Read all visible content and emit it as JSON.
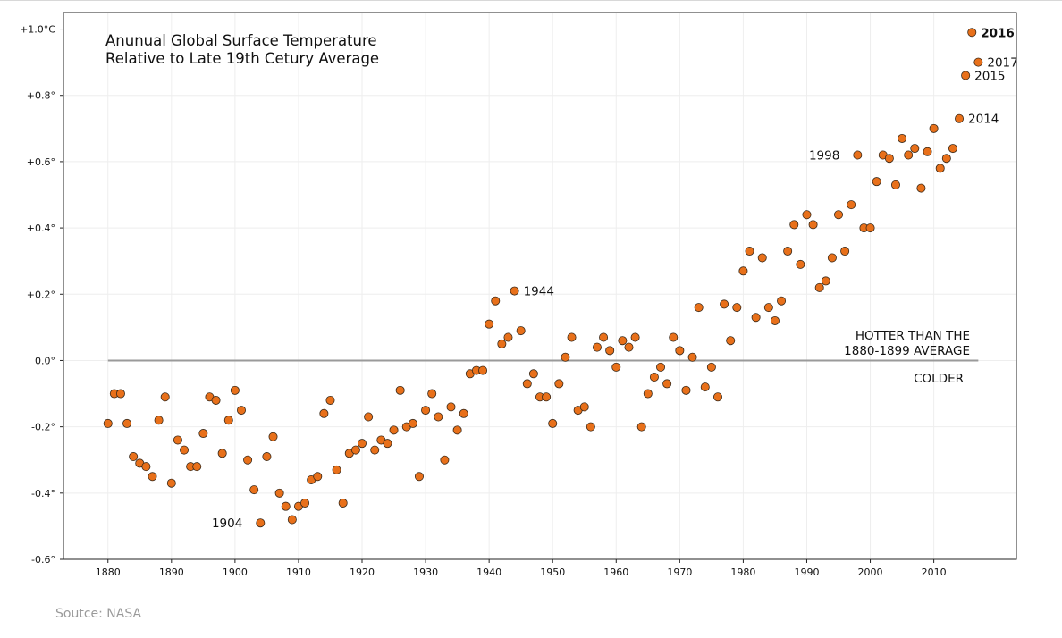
{
  "chart_data": {
    "type": "scatter",
    "title_lines": [
      "Anunual Global Surface Temperature",
      "Relative to Late 19th Cetury Average"
    ],
    "xlabel": "",
    "ylabel": "",
    "xlim": [
      1873,
      2023
    ],
    "ylim": [
      -0.6,
      1.05
    ],
    "xticks": [
      1880,
      1890,
      1900,
      1910,
      1920,
      1930,
      1940,
      1950,
      1960,
      1970,
      1980,
      1990,
      2000,
      2010
    ],
    "yticks": [
      {
        "value": 1.0,
        "label": "+1.0°C"
      },
      {
        "value": 0.8,
        "label": "+0.8°"
      },
      {
        "value": 0.6,
        "label": "+0.6°"
      },
      {
        "value": 0.4,
        "label": "+0.4°"
      },
      {
        "value": 0.2,
        "label": "+0.2°"
      },
      {
        "value": 0.0,
        "label": "0.0°"
      },
      {
        "value": -0.2,
        "label": "-0.2°"
      },
      {
        "value": -0.4,
        "label": "-0.4°"
      },
      {
        "value": -0.6,
        "label": "-0.6°"
      }
    ],
    "grid": true,
    "marker_color": "#e8701a",
    "marker_edge": "#3a2a1a",
    "baseline": {
      "y": 0.0,
      "x_start": 1880,
      "x_end": 2017,
      "color": "#9a9a9a"
    },
    "baseline_labels": {
      "hotter": [
        "HOTTER THAN THE",
        "1880-1899 AVERAGE"
      ],
      "colder": "COLDER"
    },
    "points": [
      {
        "x": 1880,
        "y": -0.19
      },
      {
        "x": 1881,
        "y": -0.1
      },
      {
        "x": 1882,
        "y": -0.1
      },
      {
        "x": 1883,
        "y": -0.19
      },
      {
        "x": 1884,
        "y": -0.29
      },
      {
        "x": 1885,
        "y": -0.31
      },
      {
        "x": 1886,
        "y": -0.32
      },
      {
        "x": 1887,
        "y": -0.35
      },
      {
        "x": 1888,
        "y": -0.18
      },
      {
        "x": 1889,
        "y": -0.11
      },
      {
        "x": 1890,
        "y": -0.37
      },
      {
        "x": 1891,
        "y": -0.24
      },
      {
        "x": 1892,
        "y": -0.27
      },
      {
        "x": 1893,
        "y": -0.32
      },
      {
        "x": 1894,
        "y": -0.32
      },
      {
        "x": 1895,
        "y": -0.22
      },
      {
        "x": 1896,
        "y": -0.11
      },
      {
        "x": 1897,
        "y": -0.12
      },
      {
        "x": 1898,
        "y": -0.28
      },
      {
        "x": 1899,
        "y": -0.18
      },
      {
        "x": 1900,
        "y": -0.09
      },
      {
        "x": 1901,
        "y": -0.15
      },
      {
        "x": 1902,
        "y": -0.3
      },
      {
        "x": 1903,
        "y": -0.39
      },
      {
        "x": 1904,
        "y": -0.49
      },
      {
        "x": 1905,
        "y": -0.29
      },
      {
        "x": 1906,
        "y": -0.23
      },
      {
        "x": 1907,
        "y": -0.4
      },
      {
        "x": 1908,
        "y": -0.44
      },
      {
        "x": 1909,
        "y": -0.48
      },
      {
        "x": 1910,
        "y": -0.44
      },
      {
        "x": 1911,
        "y": -0.43
      },
      {
        "x": 1912,
        "y": -0.36
      },
      {
        "x": 1913,
        "y": -0.35
      },
      {
        "x": 1914,
        "y": -0.16
      },
      {
        "x": 1915,
        "y": -0.12
      },
      {
        "x": 1916,
        "y": -0.33
      },
      {
        "x": 1917,
        "y": -0.43
      },
      {
        "x": 1918,
        "y": -0.28
      },
      {
        "x": 1919,
        "y": -0.27
      },
      {
        "x": 1920,
        "y": -0.25
      },
      {
        "x": 1921,
        "y": -0.17
      },
      {
        "x": 1922,
        "y": -0.27
      },
      {
        "x": 1923,
        "y": -0.24
      },
      {
        "x": 1924,
        "y": -0.25
      },
      {
        "x": 1925,
        "y": -0.21
      },
      {
        "x": 1926,
        "y": -0.09
      },
      {
        "x": 1927,
        "y": -0.2
      },
      {
        "x": 1928,
        "y": -0.19
      },
      {
        "x": 1929,
        "y": -0.35
      },
      {
        "x": 1930,
        "y": -0.15
      },
      {
        "x": 1931,
        "y": -0.1
      },
      {
        "x": 1932,
        "y": -0.17
      },
      {
        "x": 1933,
        "y": -0.3
      },
      {
        "x": 1934,
        "y": -0.14
      },
      {
        "x": 1935,
        "y": -0.21
      },
      {
        "x": 1936,
        "y": -0.16
      },
      {
        "x": 1937,
        "y": -0.04
      },
      {
        "x": 1938,
        "y": -0.03
      },
      {
        "x": 1939,
        "y": -0.03
      },
      {
        "x": 1940,
        "y": 0.11
      },
      {
        "x": 1941,
        "y": 0.18
      },
      {
        "x": 1942,
        "y": 0.05
      },
      {
        "x": 1943,
        "y": 0.07
      },
      {
        "x": 1944,
        "y": 0.21
      },
      {
        "x": 1945,
        "y": 0.09
      },
      {
        "x": 1946,
        "y": -0.07
      },
      {
        "x": 1947,
        "y": -0.04
      },
      {
        "x": 1948,
        "y": -0.11
      },
      {
        "x": 1949,
        "y": -0.11
      },
      {
        "x": 1950,
        "y": -0.19
      },
      {
        "x": 1951,
        "y": -0.07
      },
      {
        "x": 1952,
        "y": 0.01
      },
      {
        "x": 1953,
        "y": 0.07
      },
      {
        "x": 1954,
        "y": -0.15
      },
      {
        "x": 1955,
        "y": -0.14
      },
      {
        "x": 1956,
        "y": -0.2
      },
      {
        "x": 1957,
        "y": 0.04
      },
      {
        "x": 1958,
        "y": 0.07
      },
      {
        "x": 1959,
        "y": 0.03
      },
      {
        "x": 1960,
        "y": -0.02
      },
      {
        "x": 1961,
        "y": 0.06
      },
      {
        "x": 1962,
        "y": 0.04
      },
      {
        "x": 1963,
        "y": 0.07
      },
      {
        "x": 1964,
        "y": -0.2
      },
      {
        "x": 1965,
        "y": -0.1
      },
      {
        "x": 1966,
        "y": -0.05
      },
      {
        "x": 1967,
        "y": -0.02
      },
      {
        "x": 1968,
        "y": -0.07
      },
      {
        "x": 1969,
        "y": 0.07
      },
      {
        "x": 1970,
        "y": 0.03
      },
      {
        "x": 1971,
        "y": -0.09
      },
      {
        "x": 1972,
        "y": 0.01
      },
      {
        "x": 1973,
        "y": 0.16
      },
      {
        "x": 1974,
        "y": -0.08
      },
      {
        "x": 1975,
        "y": -0.02
      },
      {
        "x": 1976,
        "y": -0.11
      },
      {
        "x": 1977,
        "y": 0.17
      },
      {
        "x": 1978,
        "y": 0.06
      },
      {
        "x": 1979,
        "y": 0.16
      },
      {
        "x": 1980,
        "y": 0.27
      },
      {
        "x": 1981,
        "y": 0.33
      },
      {
        "x": 1982,
        "y": 0.13
      },
      {
        "x": 1983,
        "y": 0.31
      },
      {
        "x": 1984,
        "y": 0.16
      },
      {
        "x": 1985,
        "y": 0.12
      },
      {
        "x": 1986,
        "y": 0.18
      },
      {
        "x": 1987,
        "y": 0.33
      },
      {
        "x": 1988,
        "y": 0.41
      },
      {
        "x": 1989,
        "y": 0.29
      },
      {
        "x": 1990,
        "y": 0.44
      },
      {
        "x": 1991,
        "y": 0.41
      },
      {
        "x": 1992,
        "y": 0.22
      },
      {
        "x": 1993,
        "y": 0.24
      },
      {
        "x": 1994,
        "y": 0.31
      },
      {
        "x": 1995,
        "y": 0.44
      },
      {
        "x": 1996,
        "y": 0.33
      },
      {
        "x": 1997,
        "y": 0.47
      },
      {
        "x": 1998,
        "y": 0.62
      },
      {
        "x": 1999,
        "y": 0.4
      },
      {
        "x": 2000,
        "y": 0.4
      },
      {
        "x": 2001,
        "y": 0.54
      },
      {
        "x": 2002,
        "y": 0.62
      },
      {
        "x": 2003,
        "y": 0.61
      },
      {
        "x": 2004,
        "y": 0.53
      },
      {
        "x": 2005,
        "y": 0.67
      },
      {
        "x": 2006,
        "y": 0.62
      },
      {
        "x": 2007,
        "y": 0.64
      },
      {
        "x": 2008,
        "y": 0.52
      },
      {
        "x": 2009,
        "y": 0.63
      },
      {
        "x": 2010,
        "y": 0.7
      },
      {
        "x": 2011,
        "y": 0.58
      },
      {
        "x": 2012,
        "y": 0.61
      },
      {
        "x": 2013,
        "y": 0.64
      },
      {
        "x": 2014,
        "y": 0.73
      },
      {
        "x": 2015,
        "y": 0.86
      },
      {
        "x": 2016,
        "y": 0.99
      },
      {
        "x": 2017,
        "y": 0.9
      }
    ],
    "annotations": [
      {
        "text": "1904",
        "x": 1904,
        "y": -0.49,
        "side": "left",
        "bold": false
      },
      {
        "text": "1944",
        "x": 1944,
        "y": 0.21,
        "side": "right",
        "bold": false
      },
      {
        "text": "1998",
        "x": 1998,
        "y": 0.62,
        "side": "left",
        "bold": false
      },
      {
        "text": "2014",
        "x": 2014,
        "y": 0.73,
        "side": "right",
        "bold": false
      },
      {
        "text": "2015",
        "x": 2015,
        "y": 0.86,
        "side": "right",
        "bold": false
      },
      {
        "text": "2016",
        "x": 2016,
        "y": 0.99,
        "side": "right",
        "bold": true
      },
      {
        "text": "2017",
        "x": 2017,
        "y": 0.9,
        "side": "right",
        "bold": false
      }
    ]
  },
  "source_text": "Soutce: NASA"
}
